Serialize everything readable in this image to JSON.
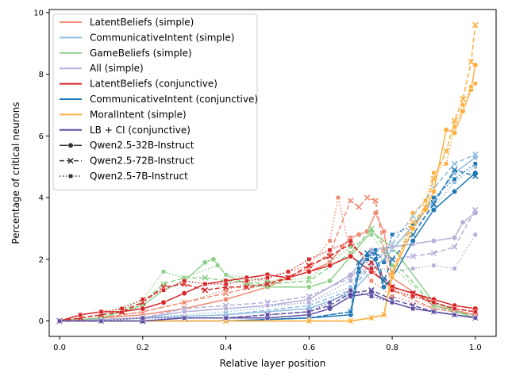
{
  "chart_data": {
    "type": "line",
    "title": "",
    "xlabel": "Relative layer position",
    "ylabel": "Percentage of critical neurons",
    "xlim": [
      -0.025,
      1.05
    ],
    "ylim": [
      -0.5,
      10.1
    ],
    "x_ticks": [
      0.0,
      0.2,
      0.4,
      0.6,
      0.8,
      1.0
    ],
    "x_tick_labels": [
      "0.0",
      "0.2",
      "0.4",
      "0.6",
      "0.8",
      "1.0"
    ],
    "y_ticks": [
      0,
      2,
      4,
      6,
      8,
      10
    ],
    "y_tick_labels": [
      "0",
      "2",
      "4",
      "6",
      "8",
      "10"
    ],
    "grid": false,
    "legend_position": "top-left",
    "legend": {
      "series": [
        {
          "label": "LatentBeliefs (simple)",
          "color": "#f08a73"
        },
        {
          "label": "CommunicativeIntent (simple)",
          "color": "#8fbde0"
        },
        {
          "label": "GameBeliefs (simple)",
          "color": "#8fd18a"
        },
        {
          "label": "All (simple)",
          "color": "#b4b0d8"
        },
        {
          "label": "LatentBeliefs (conjunctive)",
          "color": "#d62728"
        },
        {
          "label": "CommunicativeIntent (conjunctive)",
          "color": "#1f77b4"
        },
        {
          "label": "MoralIntent (simple)",
          "color": "#fbb040"
        },
        {
          "label": "LB + CI (conjunctive)",
          "color": "#5e4fa2"
        }
      ],
      "models": [
        {
          "label": "Qwen2.5-32B-Instruct",
          "dash": "solid",
          "marker": "circle"
        },
        {
          "label": "Qwen2.5-72B-Instruct",
          "dash": "dashed",
          "marker": "x"
        },
        {
          "label": "Qwen2.5-7B-Instruct",
          "dash": "dotted",
          "marker": "square"
        }
      ]
    },
    "series": [
      {
        "name": "LatentBeliefs (simple) / Qwen2.5-32B-Instruct",
        "color": "#f08a73",
        "model": 0,
        "x": [
          0.0,
          0.1,
          0.2,
          0.3,
          0.4,
          0.5,
          0.55,
          0.6,
          0.65,
          0.68,
          0.7,
          0.72,
          0.74,
          0.76,
          0.78,
          0.8,
          0.9,
          1.0
        ],
        "y": [
          0.0,
          0.1,
          0.2,
          0.4,
          0.7,
          1.1,
          1.4,
          1.6,
          1.9,
          2.4,
          2.7,
          2.8,
          2.9,
          3.5,
          2.9,
          1.4,
          0.5,
          0.2
        ]
      },
      {
        "name": "LatentBeliefs (simple) / Qwen2.5-72B-Instruct",
        "color": "#f08a73",
        "model": 1,
        "x": [
          0.0,
          0.1,
          0.2,
          0.3,
          0.4,
          0.5,
          0.6,
          0.65,
          0.7,
          0.72,
          0.74,
          0.76,
          0.78,
          0.8,
          0.9,
          1.0
        ],
        "y": [
          0.0,
          0.1,
          0.3,
          0.6,
          0.9,
          1.2,
          1.7,
          2.2,
          3.9,
          3.7,
          4.0,
          3.9,
          2.3,
          1.0,
          0.4,
          0.2
        ]
      },
      {
        "name": "LatentBeliefs (simple) / Qwen2.5-7B-Instruct",
        "color": "#f08a73",
        "model": 2,
        "x": [
          0.0,
          0.1,
          0.2,
          0.3,
          0.4,
          0.5,
          0.6,
          0.65,
          0.67,
          0.7,
          0.75,
          0.8,
          0.9,
          1.0
        ],
        "y": [
          0.0,
          0.1,
          0.3,
          0.6,
          1.0,
          1.4,
          1.8,
          2.6,
          4.0,
          2.2,
          1.3,
          0.8,
          0.4,
          0.2
        ]
      },
      {
        "name": "CommunicativeIntent (simple) / Qwen2.5-32B-Instruct",
        "color": "#8fbde0",
        "model": 0,
        "x": [
          0.0,
          0.2,
          0.4,
          0.6,
          0.7,
          0.75,
          0.8,
          0.85,
          0.9,
          0.95,
          1.0
        ],
        "y": [
          0.0,
          0.1,
          0.2,
          0.4,
          0.9,
          1.6,
          2.3,
          3.1,
          3.9,
          4.8,
          5.3
        ]
      },
      {
        "name": "CommunicativeIntent (simple) / Qwen2.5-72B-Instruct",
        "color": "#8fbde0",
        "model": 1,
        "x": [
          0.0,
          0.2,
          0.4,
          0.6,
          0.7,
          0.75,
          0.8,
          0.85,
          0.9,
          0.95,
          1.0
        ],
        "y": [
          0.0,
          0.1,
          0.2,
          0.5,
          1.0,
          1.8,
          2.5,
          3.4,
          4.3,
          5.1,
          5.4
        ]
      },
      {
        "name": "CommunicativeIntent (simple) / Qwen2.5-7B-Instruct",
        "color": "#8fbde0",
        "model": 2,
        "x": [
          0.0,
          0.2,
          0.4,
          0.6,
          0.7,
          0.75,
          0.8,
          0.85,
          0.9,
          0.95,
          1.0
        ],
        "y": [
          0.0,
          0.1,
          0.3,
          0.6,
          1.1,
          1.9,
          2.4,
          3.0,
          3.7,
          4.5,
          5.0
        ]
      },
      {
        "name": "GameBeliefs (simple) / Qwen2.5-32B-Instruct",
        "color": "#8fd18a",
        "model": 0,
        "x": [
          0.0,
          0.1,
          0.2,
          0.25,
          0.3,
          0.35,
          0.37,
          0.4,
          0.45,
          0.5,
          0.6,
          0.65,
          0.7,
          0.75,
          0.8,
          0.9,
          1.0
        ],
        "y": [
          0.0,
          0.1,
          0.5,
          1.0,
          1.3,
          1.9,
          2.0,
          1.5,
          1.2,
          1.1,
          1.1,
          1.3,
          2.1,
          2.9,
          2.4,
          0.6,
          0.1
        ]
      },
      {
        "name": "GameBeliefs (simple) / Qwen2.5-72B-Instruct",
        "color": "#8fd18a",
        "model": 1,
        "x": [
          0.0,
          0.1,
          0.2,
          0.25,
          0.3,
          0.35,
          0.4,
          0.5,
          0.6,
          0.7,
          0.75,
          0.8,
          0.9,
          1.0
        ],
        "y": [
          0.0,
          0.1,
          0.6,
          1.2,
          1.4,
          1.4,
          1.3,
          1.2,
          1.3,
          2.2,
          3.0,
          2.0,
          0.5,
          0.1
        ]
      },
      {
        "name": "GameBeliefs (simple) / Qwen2.5-7B-Instruct",
        "color": "#8fd18a",
        "model": 2,
        "x": [
          0.0,
          0.1,
          0.2,
          0.25,
          0.3,
          0.38,
          0.4,
          0.5,
          0.6,
          0.7,
          0.75,
          0.8,
          0.9,
          1.0
        ],
        "y": [
          0.0,
          0.2,
          0.7,
          1.6,
          1.4,
          1.8,
          1.5,
          1.3,
          1.4,
          2.4,
          2.8,
          1.8,
          0.5,
          0.1
        ]
      },
      {
        "name": "All (simple) / Qwen2.5-32B-Instruct",
        "color": "#b4b0d8",
        "model": 0,
        "x": [
          0.0,
          0.2,
          0.3,
          0.4,
          0.5,
          0.6,
          0.7,
          0.75,
          0.8,
          0.85,
          0.9,
          0.95,
          0.97,
          1.0
        ],
        "y": [
          0.0,
          0.1,
          0.3,
          0.4,
          0.5,
          0.7,
          1.5,
          2.3,
          2.4,
          2.5,
          2.6,
          2.7,
          3.2,
          3.5
        ]
      },
      {
        "name": "All (simple) / Qwen2.5-72B-Instruct",
        "color": "#b4b0d8",
        "model": 1,
        "x": [
          0.0,
          0.2,
          0.3,
          0.4,
          0.5,
          0.6,
          0.7,
          0.75,
          0.8,
          0.85,
          0.9,
          0.95,
          1.0
        ],
        "y": [
          0.0,
          0.1,
          0.4,
          0.5,
          0.6,
          0.8,
          1.4,
          2.2,
          2.0,
          2.1,
          2.2,
          2.4,
          3.6
        ]
      },
      {
        "name": "All (simple) / Qwen2.5-7B-Instruct",
        "color": "#b4b0d8",
        "model": 2,
        "x": [
          0.0,
          0.2,
          0.3,
          0.4,
          0.5,
          0.6,
          0.7,
          0.75,
          0.8,
          0.85,
          0.9,
          0.95,
          1.0
        ],
        "y": [
          0.0,
          0.1,
          0.3,
          0.4,
          0.5,
          0.6,
          1.3,
          1.8,
          1.6,
          1.7,
          1.8,
          1.7,
          2.8
        ]
      },
      {
        "name": "LatentBeliefs (conjunctive) / Qwen2.5-32B-Instruct",
        "color": "#d62728",
        "model": 0,
        "x": [
          0.0,
          0.05,
          0.1,
          0.15,
          0.2,
          0.25,
          0.3,
          0.35,
          0.4,
          0.45,
          0.5,
          0.55,
          0.6,
          0.65,
          0.7,
          0.75,
          0.8,
          0.85,
          0.9,
          0.95,
          1.0
        ],
        "y": [
          0.0,
          0.2,
          0.3,
          0.3,
          0.4,
          0.6,
          0.9,
          1.2,
          1.3,
          1.4,
          1.5,
          1.4,
          1.6,
          1.8,
          2.1,
          1.6,
          1.1,
          0.9,
          0.7,
          0.5,
          0.4
        ]
      },
      {
        "name": "LatentBeliefs (conjunctive) / Qwen2.5-72B-Instruct",
        "color": "#d62728",
        "model": 1,
        "x": [
          0.0,
          0.05,
          0.1,
          0.15,
          0.2,
          0.25,
          0.3,
          0.35,
          0.4,
          0.45,
          0.5,
          0.55,
          0.6,
          0.65,
          0.7,
          0.75,
          0.8,
          0.85,
          0.9,
          0.95,
          1.0
        ],
        "y": [
          0.0,
          0.1,
          0.2,
          0.3,
          0.6,
          1.1,
          1.2,
          1.0,
          1.1,
          1.1,
          1.2,
          1.4,
          1.8,
          2.1,
          2.5,
          1.9,
          1.1,
          0.9,
          0.6,
          0.4,
          0.3
        ]
      },
      {
        "name": "LatentBeliefs (conjunctive) / Qwen2.5-7B-Instruct",
        "color": "#d62728",
        "model": 2,
        "x": [
          0.0,
          0.05,
          0.1,
          0.15,
          0.2,
          0.25,
          0.3,
          0.35,
          0.4,
          0.45,
          0.5,
          0.55,
          0.6,
          0.65,
          0.7,
          0.75,
          0.8,
          0.85,
          0.9,
          0.95,
          1.0
        ],
        "y": [
          0.0,
          0.2,
          0.3,
          0.4,
          0.7,
          1.0,
          1.3,
          1.2,
          1.2,
          1.3,
          1.4,
          1.6,
          2.0,
          2.3,
          2.6,
          1.7,
          1.0,
          0.8,
          0.6,
          0.4,
          0.3
        ]
      },
      {
        "name": "CommunicativeIntent (conjunctive) / Qwen2.5-32B-Instruct",
        "color": "#1f77b4",
        "model": 0,
        "x": [
          0.0,
          0.2,
          0.4,
          0.6,
          0.7,
          0.72,
          0.74,
          0.76,
          0.78,
          0.8,
          0.85,
          0.9,
          0.95,
          1.0
        ],
        "y": [
          0.0,
          0.0,
          0.0,
          0.1,
          0.2,
          1.6,
          2.1,
          2.0,
          1.1,
          1.4,
          2.6,
          3.6,
          4.2,
          4.8
        ]
      },
      {
        "name": "CommunicativeIntent (conjunctive) / Qwen2.5-72B-Instruct",
        "color": "#1f77b4",
        "model": 1,
        "x": [
          0.0,
          0.2,
          0.4,
          0.6,
          0.7,
          0.72,
          0.74,
          0.76,
          0.78,
          0.8,
          0.85,
          0.9,
          0.95,
          1.0
        ],
        "y": [
          0.0,
          0.0,
          0.0,
          0.1,
          0.3,
          1.9,
          2.2,
          2.2,
          1.3,
          2.0,
          2.8,
          3.8,
          4.9,
          4.7
        ]
      },
      {
        "name": "CommunicativeIntent (conjunctive) / Qwen2.5-7B-Instruct",
        "color": "#1f77b4",
        "model": 2,
        "x": [
          0.0,
          0.2,
          0.4,
          0.6,
          0.7,
          0.72,
          0.74,
          0.76,
          0.78,
          0.8,
          0.85,
          0.9,
          0.95,
          1.0
        ],
        "y": [
          0.0,
          0.0,
          0.0,
          0.1,
          0.3,
          1.7,
          2.0,
          2.3,
          1.9,
          2.8,
          3.1,
          4.0,
          4.6,
          5.1
        ]
      },
      {
        "name": "MoralIntent (simple) / Qwen2.5-32B-Instruct",
        "color": "#fbb040",
        "model": 0,
        "x": [
          0.0,
          0.2,
          0.4,
          0.6,
          0.7,
          0.75,
          0.78,
          0.8,
          0.85,
          0.88,
          0.9,
          0.93,
          0.95,
          0.97,
          0.99,
          1.0
        ],
        "y": [
          0.0,
          0.0,
          0.0,
          0.0,
          0.0,
          0.1,
          0.2,
          1.5,
          3.0,
          3.6,
          4.2,
          6.2,
          6.1,
          6.8,
          7.5,
          8.3
        ]
      },
      {
        "name": "MoralIntent (simple) / Qwen2.5-72B-Instruct",
        "color": "#fbb040",
        "model": 1,
        "x": [
          0.0,
          0.2,
          0.4,
          0.6,
          0.7,
          0.75,
          0.78,
          0.8,
          0.85,
          0.88,
          0.9,
          0.93,
          0.95,
          0.97,
          0.99,
          1.0
        ],
        "y": [
          0.0,
          0.0,
          0.0,
          0.0,
          0.0,
          0.1,
          0.2,
          1.6,
          3.2,
          3.7,
          4.6,
          5.5,
          6.5,
          7.2,
          8.4,
          9.6
        ]
      },
      {
        "name": "MoralIntent (simple) / Qwen2.5-7B-Instruct",
        "color": "#fbb040",
        "model": 2,
        "x": [
          0.0,
          0.2,
          0.4,
          0.6,
          0.7,
          0.75,
          0.78,
          0.8,
          0.85,
          0.88,
          0.9,
          0.93,
          0.95,
          0.97,
          0.99,
          1.0
        ],
        "y": [
          0.0,
          0.0,
          0.0,
          0.0,
          0.0,
          0.1,
          0.2,
          1.4,
          3.5,
          3.9,
          4.8,
          5.1,
          6.3,
          7.0,
          7.6,
          7.7
        ]
      },
      {
        "name": "LB + CI (conjunctive) / Qwen2.5-32B-Instruct",
        "color": "#5e4fa2",
        "model": 0,
        "x": [
          0.0,
          0.1,
          0.2,
          0.3,
          0.4,
          0.5,
          0.6,
          0.65,
          0.7,
          0.75,
          0.8,
          0.85,
          0.9,
          0.95,
          1.0
        ],
        "y": [
          0.0,
          0.0,
          0.0,
          0.1,
          0.1,
          0.1,
          0.2,
          0.4,
          0.8,
          0.9,
          0.6,
          0.4,
          0.3,
          0.2,
          0.1
        ]
      },
      {
        "name": "LB + CI (conjunctive) / Qwen2.5-72B-Instruct",
        "color": "#5e4fa2",
        "model": 1,
        "x": [
          0.0,
          0.1,
          0.2,
          0.3,
          0.4,
          0.5,
          0.6,
          0.65,
          0.7,
          0.75,
          0.8,
          0.85,
          0.9,
          0.95,
          1.0
        ],
        "y": [
          0.0,
          0.0,
          0.0,
          0.1,
          0.1,
          0.2,
          0.3,
          0.5,
          0.9,
          1.0,
          0.7,
          0.5,
          0.3,
          0.2,
          0.1
        ]
      },
      {
        "name": "LB + CI (conjunctive) / Qwen2.5-7B-Instruct",
        "color": "#5e4fa2",
        "model": 2,
        "x": [
          0.0,
          0.1,
          0.2,
          0.3,
          0.4,
          0.5,
          0.6,
          0.65,
          0.7,
          0.75,
          0.8,
          0.85,
          0.9,
          0.95,
          1.0
        ],
        "y": [
          0.0,
          0.0,
          0.1,
          0.1,
          0.1,
          0.2,
          0.3,
          0.6,
          1.0,
          0.8,
          0.6,
          0.4,
          0.3,
          0.2,
          0.1
        ]
      }
    ]
  }
}
